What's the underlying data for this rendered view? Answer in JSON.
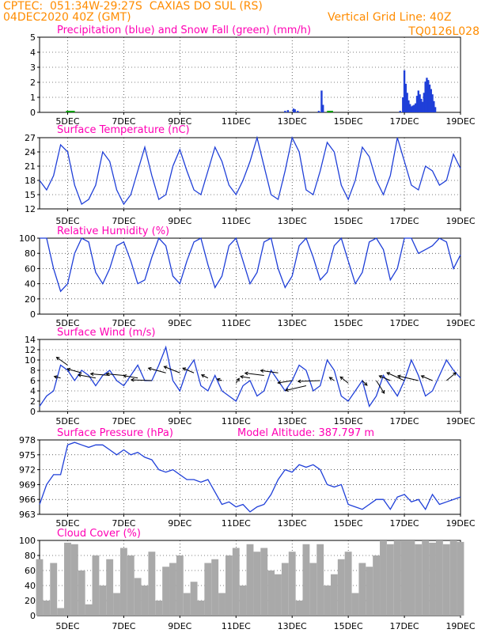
{
  "header": {
    "line1": "CPTEC:  051:34W-29:27S  CAXIAS DO SUL (RS)",
    "line2_left": "04DEC2020 40Z (GMT)",
    "line2_right": "Vertical Grid Line: 40Z",
    "code": "TQ0126L028"
  },
  "colors": {
    "header": "#ff8c00",
    "title": "#ff00b4",
    "series": "#1f3fd8",
    "snow": "#00a000",
    "cloud": "#a9a9a9",
    "wind_arrow": "#000000"
  },
  "x_ticks": [
    "5DEC",
    "7DEC",
    "9DEC",
    "11DEC",
    "13DEC",
    "15DEC",
    "17DEC",
    "19DEC"
  ],
  "chart_data": [
    {
      "type": "bar",
      "title": "Precipitation (blue) and Snow Fall (green) (mm/h)",
      "ylim": [
        0,
        5
      ],
      "yticks": [
        "0",
        "1",
        "2",
        "3",
        "4",
        "5"
      ],
      "x_unit": "days since 04DEC 00Z",
      "precip": [
        [
          8.75,
          0.1
        ],
        [
          8.85,
          0.15
        ],
        [
          9.05,
          0.25
        ],
        [
          9.1,
          0.2
        ],
        [
          9.2,
          0.1
        ],
        [
          9.95,
          0.1
        ],
        [
          10.05,
          1.45
        ],
        [
          10.1,
          0.5
        ],
        [
          12.85,
          0.1
        ],
        [
          12.95,
          1.0
        ],
        [
          13.0,
          2.8
        ],
        [
          13.05,
          1.9
        ],
        [
          13.1,
          1.3
        ],
        [
          13.15,
          0.8
        ],
        [
          13.2,
          0.55
        ],
        [
          13.25,
          0.4
        ],
        [
          13.3,
          0.45
        ],
        [
          13.35,
          0.5
        ],
        [
          13.4,
          0.6
        ],
        [
          13.45,
          1.1
        ],
        [
          13.5,
          1.45
        ],
        [
          13.55,
          1.2
        ],
        [
          13.6,
          0.9
        ],
        [
          13.65,
          0.7
        ],
        [
          13.7,
          1.3
        ],
        [
          13.75,
          2.05
        ],
        [
          13.8,
          2.3
        ],
        [
          13.85,
          2.15
        ],
        [
          13.9,
          1.85
        ],
        [
          13.95,
          1.55
        ],
        [
          14.0,
          1.2
        ],
        [
          14.05,
          0.75
        ],
        [
          14.1,
          0.35
        ]
      ],
      "snow": [
        [
          1.0,
          0.03
        ],
        [
          1.1,
          0.03
        ],
        [
          1.2,
          0.03
        ],
        [
          10.3,
          0.03
        ],
        [
          10.4,
          0.03
        ]
      ]
    },
    {
      "type": "line",
      "title": "Surface Temperature (nC)",
      "ylim": [
        12,
        27
      ],
      "yticks": [
        "12",
        "15",
        "18",
        "21",
        "24",
        "27"
      ],
      "x": [
        0.0,
        0.25,
        0.5,
        0.75,
        1.0,
        1.25,
        1.5,
        1.75,
        2.0,
        2.25,
        2.5,
        2.75,
        3.0,
        3.25,
        3.5,
        3.75,
        4.0,
        4.25,
        4.5,
        4.75,
        5.0,
        5.25,
        5.5,
        5.75,
        6.0,
        6.25,
        6.5,
        6.75,
        7.0,
        7.25,
        7.5,
        7.75,
        8.0,
        8.25,
        8.5,
        8.75,
        9.0,
        9.25,
        9.5,
        9.75,
        10.0,
        10.25,
        10.5,
        10.75,
        11.0,
        11.25,
        11.5,
        11.75,
        12.0,
        12.25,
        12.5,
        12.75,
        13.0,
        13.25,
        13.5,
        13.75,
        14.0,
        14.25,
        14.5,
        14.75,
        15.0
      ],
      "values": [
        18,
        16,
        19,
        25.5,
        24,
        17,
        13,
        14,
        17,
        24,
        22,
        16,
        13,
        15,
        20,
        25,
        19,
        14,
        15,
        21,
        24.5,
        20,
        16,
        15,
        20,
        25,
        22,
        17,
        15,
        18,
        22,
        27,
        21,
        15,
        14,
        20,
        27,
        24,
        16,
        15,
        20,
        26,
        24,
        17,
        14,
        18,
        25,
        23,
        18,
        15,
        19,
        27,
        22,
        17,
        16,
        21,
        20,
        17,
        18,
        23.5,
        20.5
      ]
    },
    {
      "type": "line",
      "title": "Relative Humidity (%)",
      "ylim": [
        0,
        100
      ],
      "yticks": [
        "0",
        "20",
        "40",
        "60",
        "80",
        "100"
      ],
      "x": [
        0.0,
        0.25,
        0.5,
        0.75,
        1.0,
        1.25,
        1.5,
        1.75,
        2.0,
        2.25,
        2.5,
        2.75,
        3.0,
        3.25,
        3.5,
        3.75,
        4.0,
        4.25,
        4.5,
        4.75,
        5.0,
        5.25,
        5.5,
        5.75,
        6.0,
        6.25,
        6.5,
        6.75,
        7.0,
        7.25,
        7.5,
        7.75,
        8.0,
        8.25,
        8.5,
        8.75,
        9.0,
        9.25,
        9.5,
        9.75,
        10.0,
        10.25,
        10.5,
        10.75,
        11.0,
        11.25,
        11.5,
        11.75,
        12.0,
        12.25,
        12.5,
        12.75,
        13.0,
        13.25,
        13.5,
        13.75,
        14.0,
        14.25,
        14.5,
        14.75,
        15.0
      ],
      "values": [
        100,
        100,
        60,
        30,
        40,
        80,
        100,
        95,
        55,
        40,
        60,
        90,
        95,
        70,
        40,
        45,
        75,
        100,
        90,
        50,
        40,
        70,
        95,
        100,
        65,
        35,
        50,
        90,
        100,
        70,
        40,
        55,
        95,
        100,
        60,
        35,
        50,
        90,
        100,
        75,
        45,
        55,
        90,
        100,
        70,
        40,
        55,
        95,
        100,
        85,
        45,
        60,
        100,
        100,
        80,
        85,
        90,
        100,
        95,
        60,
        78
      ]
    },
    {
      "type": "line",
      "title": "Surface Wind (m/s)",
      "ylim": [
        0,
        14
      ],
      "yticks": [
        "0",
        "2",
        "4",
        "6",
        "8",
        "10",
        "12",
        "14"
      ],
      "x": [
        0.0,
        0.25,
        0.5,
        0.75,
        1.0,
        1.25,
        1.5,
        1.75,
        2.0,
        2.25,
        2.5,
        2.75,
        3.0,
        3.25,
        3.5,
        3.75,
        4.0,
        4.25,
        4.5,
        4.75,
        5.0,
        5.25,
        5.5,
        5.75,
        6.0,
        6.25,
        6.5,
        6.75,
        7.0,
        7.25,
        7.5,
        7.75,
        8.0,
        8.25,
        8.5,
        8.75,
        9.0,
        9.25,
        9.5,
        9.75,
        10.0,
        10.25,
        10.5,
        10.75,
        11.0,
        11.25,
        11.5,
        11.75,
        12.0,
        12.25,
        12.5,
        12.75,
        13.0,
        13.25,
        13.5,
        13.75,
        14.0,
        14.25,
        14.5,
        14.75,
        15.0
      ],
      "values": [
        1,
        3,
        4,
        9,
        8,
        6,
        8,
        7,
        5,
        7,
        8,
        6,
        5,
        7,
        9,
        6,
        6,
        9,
        12.5,
        6,
        4,
        8,
        10,
        5,
        4,
        7,
        4,
        3,
        2,
        5,
        6,
        3,
        4,
        8,
        6,
        4,
        6,
        9,
        8,
        4,
        5,
        10,
        8,
        3,
        2,
        4,
        6,
        1,
        3,
        7,
        5,
        3,
        6,
        10,
        7,
        3,
        4,
        7,
        10,
        8,
        6.5
      ]
    }
  ],
  "wind_arrows": {
    "x": [
      0.75,
      1.0,
      1.5,
      2.0,
      2.5,
      3.0,
      3.5,
      4.0,
      4.5,
      5.0,
      5.5,
      6.0,
      6.5,
      7.0,
      7.5,
      8.0,
      8.5,
      9.0,
      9.5,
      10.0,
      10.5,
      11.0,
      11.5,
      12.0,
      12.5,
      13.0,
      13.5,
      14.0,
      14.5
    ],
    "y": [
      6.5,
      9,
      7.5,
      6.5,
      7,
      7,
      6.5,
      6,
      7.5,
      7.5,
      7.5,
      6.5,
      6,
      5.5,
      6.5,
      7,
      7.5,
      6,
      5,
      6,
      6,
      5.5,
      6,
      6,
      6,
      6,
      6,
      6,
      6
    ],
    "dx": [
      -8,
      -14,
      -18,
      -22,
      -24,
      -22,
      -18,
      -26,
      -22,
      -20,
      -14,
      -8,
      -6,
      4,
      -12,
      -24,
      -22,
      -18,
      -26,
      -28,
      -6,
      -10,
      6,
      10,
      -14,
      -22,
      -26,
      -14,
      12
    ],
    "dy": [
      -2,
      -10,
      -5,
      -4,
      -2,
      -2,
      -3,
      -1,
      -6,
      -8,
      -6,
      -4,
      -2,
      -6,
      -2,
      -3,
      -3,
      3,
      6,
      1,
      -4,
      -8,
      6,
      16,
      -6,
      -10,
      -6,
      -6,
      -10
    ]
  },
  "pressure": {
    "type": "line",
    "title": "Surface Pressure (hPa)",
    "model_altitude_label": "Model Altitude: 387.797 m",
    "ylim": [
      963,
      978
    ],
    "yticks": [
      "963",
      "966",
      "969",
      "972",
      "975",
      "978"
    ],
    "x": [
      0.0,
      0.25,
      0.5,
      0.75,
      1.0,
      1.25,
      1.5,
      1.75,
      2.0,
      2.25,
      2.5,
      2.75,
      3.0,
      3.25,
      3.5,
      3.75,
      4.0,
      4.25,
      4.5,
      4.75,
      5.0,
      5.25,
      5.5,
      5.75,
      6.0,
      6.25,
      6.5,
      6.75,
      7.0,
      7.25,
      7.5,
      7.75,
      8.0,
      8.25,
      8.5,
      8.75,
      9.0,
      9.25,
      9.5,
      9.75,
      10.0,
      10.25,
      10.5,
      10.75,
      11.0,
      11.25,
      11.5,
      11.75,
      12.0,
      12.25,
      12.5,
      12.75,
      13.0,
      13.25,
      13.5,
      13.75,
      14.0,
      14.25,
      14.5,
      14.75,
      15.0
    ],
    "values": [
      965,
      969,
      971,
      971,
      977,
      977.5,
      977,
      976.5,
      977,
      977,
      976,
      975,
      976,
      975,
      975.5,
      974.5,
      974,
      972,
      971.5,
      972,
      971,
      970,
      970,
      969.5,
      970,
      967.5,
      965,
      965.5,
      964.5,
      965,
      963.5,
      964.5,
      965,
      967,
      970,
      972,
      971.5,
      973,
      972.5,
      973,
      972,
      969,
      968.5,
      969,
      965,
      964.5,
      964,
      965,
      966,
      966,
      964,
      966.5,
      967,
      965.5,
      966,
      964,
      967,
      965,
      965.5,
      966,
      966.5
    ]
  },
  "cloud": {
    "type": "bar",
    "title": "Cloud Cover (%)",
    "ylim": [
      0,
      100
    ],
    "yticks": [
      "0",
      "20",
      "40",
      "60",
      "80",
      "100"
    ],
    "x": [
      0.0,
      0.25,
      0.5,
      0.75,
      1.0,
      1.25,
      1.5,
      1.75,
      2.0,
      2.25,
      2.5,
      2.75,
      3.0,
      3.25,
      3.5,
      3.75,
      4.0,
      4.25,
      4.5,
      4.75,
      5.0,
      5.25,
      5.5,
      5.75,
      6.0,
      6.25,
      6.5,
      6.75,
      7.0,
      7.25,
      7.5,
      7.75,
      8.0,
      8.25,
      8.5,
      8.75,
      9.0,
      9.25,
      9.5,
      9.75,
      10.0,
      10.25,
      10.5,
      10.75,
      11.0,
      11.25,
      11.5,
      11.75,
      12.0,
      12.25,
      12.5,
      12.75,
      13.0,
      13.25,
      13.5,
      13.75,
      14.0,
      14.25,
      14.5,
      14.75,
      15.0
    ],
    "values": [
      75,
      20,
      70,
      10,
      97,
      95,
      60,
      15,
      80,
      40,
      75,
      30,
      90,
      80,
      50,
      40,
      85,
      20,
      65,
      70,
      80,
      30,
      45,
      20,
      70,
      75,
      30,
      80,
      90,
      40,
      95,
      85,
      90,
      60,
      55,
      70,
      85,
      20,
      95,
      70,
      95,
      40,
      55,
      75,
      85,
      30,
      70,
      65,
      80,
      100,
      95,
      100,
      100,
      100,
      95,
      100,
      97,
      100,
      95,
      100,
      98
    ]
  }
}
